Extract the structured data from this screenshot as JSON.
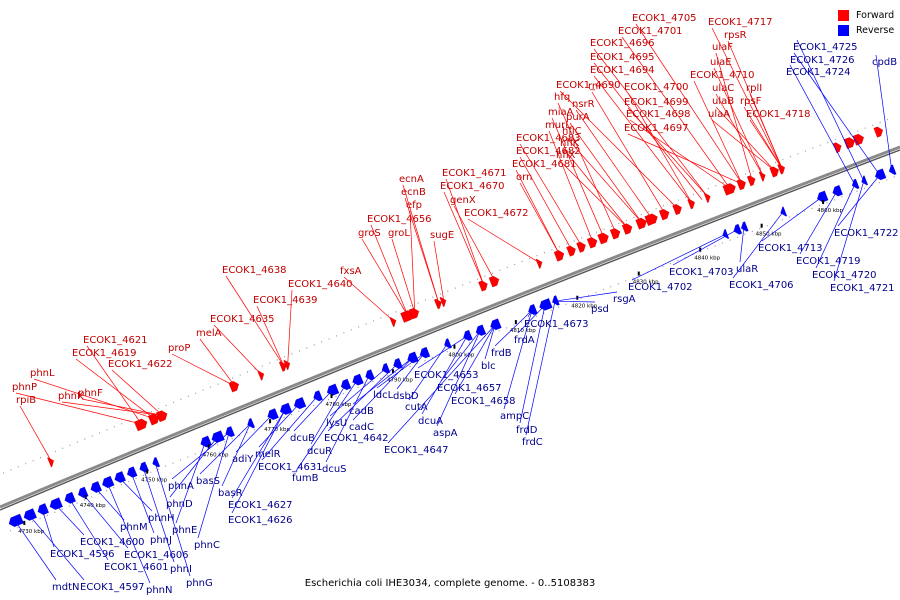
{
  "legend": {
    "forward_label": "Forward",
    "reverse_label": "Reverse",
    "forward_color": "#ff0000",
    "reverse_color": "#0000ff"
  },
  "caption": "Escherichia coli IHE3034, complete genome. - 0..5108383",
  "colors": {
    "line": "#8a8a8a",
    "forward_label": "#c00000",
    "reverse_label": "#00008b",
    "tick": "#000000"
  },
  "kbp_ticks": [
    "4730 kbp",
    "4740 kbp",
    "4750 kbp",
    "4760 kbp",
    "4770 kbp",
    "4780 kbp",
    "4790 kbp",
    "4800 kbp",
    "4810 kbp",
    "4820 kbp",
    "4830 kbp",
    "4840 kbp",
    "4850 kbp",
    "4860 kbp"
  ],
  "forward_labels": [
    "rpiB",
    "phnP",
    "phnL",
    "phnK",
    "phnF",
    "ECOK1_4621",
    "ECOK1_4619",
    "ECOK1_4622",
    "proP",
    "melA",
    "ECOK1_4635",
    "ECOK1_4639",
    "ECOK1_4638",
    "ECOK1_4640",
    "fxsA",
    "groS",
    "groL",
    "ECOK1_4656",
    "efp",
    "ecnB",
    "ecnA",
    "sugE",
    "ECOK1_4671",
    "ECOK1_4670",
    "genX",
    "ECOK1_4672",
    "orn",
    "ECOK1_4681",
    "ECOK1_4682",
    "ECOK1_4683",
    "murL",
    "miaA",
    "hfq",
    "hflX",
    "hflK",
    "hflC",
    "purA",
    "nsrR",
    "rnr",
    "ECOK1_4690",
    "ECOK1_4694",
    "ECOK1_4695",
    "ECOK1_4696",
    "ECOK1_4701",
    "ECOK1_4705",
    "ECOK1_4700",
    "ECOK1_4699",
    "ECOK1_4698",
    "ECOK1_4697",
    "ECOK1_4710",
    "ulaF",
    "ulaE",
    "ulaC",
    "ulaB",
    "ulaA",
    "ECOK1_4717",
    "rpsR",
    "rplI",
    "rpsF",
    "ECOK1_4718"
  ],
  "reverse_labels": [
    "mdtN",
    "ECOK1_4597",
    "ECOK1_4596",
    "ECOK1_4600",
    "ECOK1_4601",
    "ECOK1_4606",
    "phnM",
    "phnN",
    "phnH",
    "phnJ",
    "phnI",
    "phnG",
    "phnE",
    "phnD",
    "phnC",
    "phnA",
    "basS",
    "basR",
    "adiY",
    "ECOK1_4626",
    "ECOK1_4627",
    "melR",
    "ECOK1_4631",
    "dcuB",
    "dcuR",
    "fumB",
    "dcuS",
    "lysU",
    "ECOK1_4642",
    "cadB",
    "cadC",
    "ldcL",
    "dsbD",
    "cutA",
    "dcuA",
    "aspA",
    "ECOK1_4647",
    "ECOK1_4653",
    "ECOK1_4657",
    "ECOK1_4658",
    "blc",
    "frdB",
    "frdA",
    "ampC",
    "frdD",
    "frdC",
    "ECOK1_4673",
    "psd",
    "rsgA",
    "ECOK1_4702",
    "ECOK1_4703",
    "ulaR",
    "ECOK1_4706",
    "ECOK1_4713",
    "ECOK1_4719",
    "ECOK1_4720",
    "ECOK1_4721",
    "ECOK1_4722",
    "ECOK1_4724",
    "ECOK1_4725",
    "ECOK1_4726",
    "cpdB"
  ]
}
